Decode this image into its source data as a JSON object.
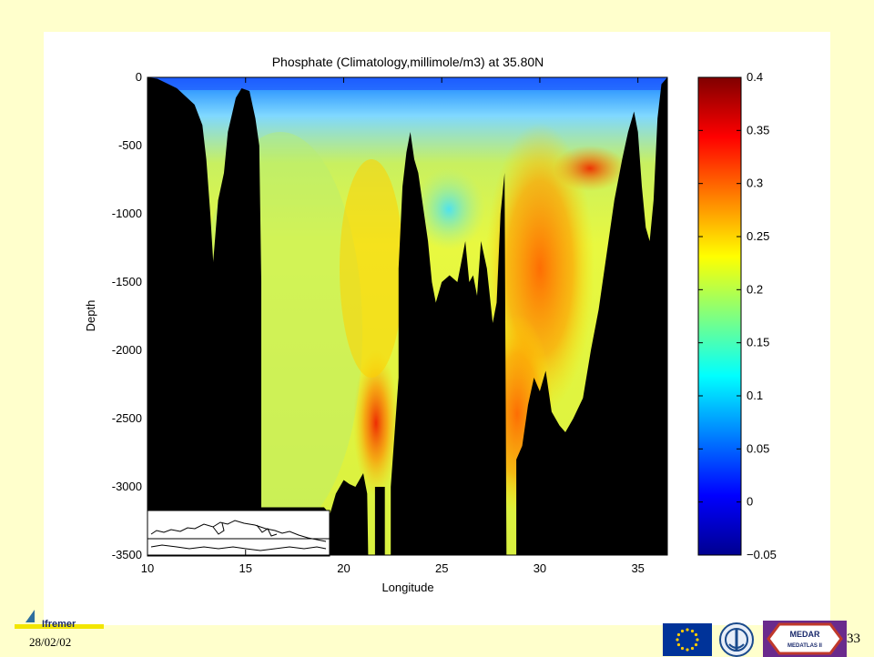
{
  "slide": {
    "date": "28/02/02",
    "page_number": "33",
    "logos": {
      "ifremer": "Ifremer",
      "eu": "eu-flag-icon",
      "unesco": "ioc-unesco-icon",
      "medar_top": "MEDAR",
      "medar_bottom": "MEDATLAS II"
    }
  },
  "chart_data": {
    "type": "heatmap",
    "title": "Phosphate (Climatology,millimole/m3) at 35.80N",
    "xlabel": "Longitude",
    "ylabel": "Depth",
    "xlim": [
      10,
      36.5
    ],
    "ylim": [
      -3500,
      0
    ],
    "xticks": [
      10,
      15,
      20,
      25,
      30,
      35
    ],
    "yticks": [
      0,
      -500,
      -1000,
      -1500,
      -2000,
      -2500,
      -3000,
      -3500
    ],
    "colorbar": {
      "range": [
        -0.05,
        0.4
      ],
      "ticks": [
        0.4,
        0.35,
        0.3,
        0.25,
        0.2,
        0.15,
        0.1,
        0.05,
        0,
        -0.05
      ],
      "colormap": "jet"
    },
    "bathymetry": [
      [
        10.0,
        0
      ],
      [
        10.5,
        -10
      ],
      [
        11.5,
        -80
      ],
      [
        12.4,
        -200
      ],
      [
        12.8,
        -350
      ],
      [
        13.0,
        -600
      ],
      [
        13.2,
        -1000
      ],
      [
        13.35,
        -1350
      ],
      [
        13.6,
        -900
      ],
      [
        13.9,
        -700
      ],
      [
        14.1,
        -400
      ],
      [
        14.5,
        -150
      ],
      [
        14.8,
        -80
      ],
      [
        15.2,
        -100
      ],
      [
        15.5,
        -300
      ],
      [
        15.7,
        -500
      ],
      [
        15.8,
        -1500
      ],
      [
        15.8,
        -3150
      ],
      [
        19.0,
        -3150
      ],
      [
        19.3,
        -3200
      ],
      [
        19.6,
        -3050
      ],
      [
        20.0,
        -2950
      ],
      [
        20.3,
        -2980
      ],
      [
        20.6,
        -3000
      ],
      [
        21.0,
        -2900
      ],
      [
        21.2,
        -3050
      ],
      [
        21.25,
        -3500
      ],
      [
        21.6,
        -3500
      ],
      [
        21.6,
        -3000
      ],
      [
        22.1,
        -3000
      ],
      [
        22.1,
        -3500
      ],
      [
        22.4,
        -3500
      ],
      [
        22.4,
        -3000
      ],
      [
        22.6,
        -2600
      ],
      [
        22.8,
        -2200
      ],
      [
        22.8,
        -1400
      ],
      [
        23.0,
        -800
      ],
      [
        23.2,
        -550
      ],
      [
        23.4,
        -400
      ],
      [
        23.6,
        -600
      ],
      [
        23.8,
        -700
      ],
      [
        24.1,
        -1000
      ],
      [
        24.3,
        -1200
      ],
      [
        24.5,
        -1500
      ],
      [
        24.7,
        -1650
      ],
      [
        25.0,
        -1500
      ],
      [
        25.4,
        -1450
      ],
      [
        25.8,
        -1500
      ],
      [
        26.0,
        -1350
      ],
      [
        26.2,
        -1200
      ],
      [
        26.4,
        -1500
      ],
      [
        26.6,
        -1450
      ],
      [
        26.8,
        -1600
      ],
      [
        27.0,
        -1200
      ],
      [
        27.3,
        -1400
      ],
      [
        27.6,
        -1800
      ],
      [
        27.8,
        -1650
      ],
      [
        28.0,
        -1000
      ],
      [
        28.2,
        -700
      ],
      [
        28.3,
        -3500
      ],
      [
        28.8,
        -3500
      ],
      [
        28.8,
        -2800
      ],
      [
        29.1,
        -2700
      ],
      [
        29.4,
        -2400
      ],
      [
        29.7,
        -2200
      ],
      [
        30.0,
        -2300
      ],
      [
        30.3,
        -2150
      ],
      [
        30.6,
        -2450
      ],
      [
        31.0,
        -2550
      ],
      [
        31.3,
        -2600
      ],
      [
        31.7,
        -2500
      ],
      [
        32.2,
        -2350
      ],
      [
        32.6,
        -2000
      ],
      [
        33.0,
        -1700
      ],
      [
        33.4,
        -1300
      ],
      [
        33.8,
        -900
      ],
      [
        34.2,
        -600
      ],
      [
        34.5,
        -400
      ],
      [
        34.8,
        -250
      ],
      [
        35.0,
        -400
      ],
      [
        35.2,
        -800
      ],
      [
        35.4,
        -1100
      ],
      [
        35.6,
        -1200
      ],
      [
        35.8,
        -900
      ],
      [
        36.0,
        -300
      ],
      [
        36.2,
        -50
      ],
      [
        36.5,
        0
      ]
    ],
    "inset_map": "mediterranean-sea-location-map"
  }
}
